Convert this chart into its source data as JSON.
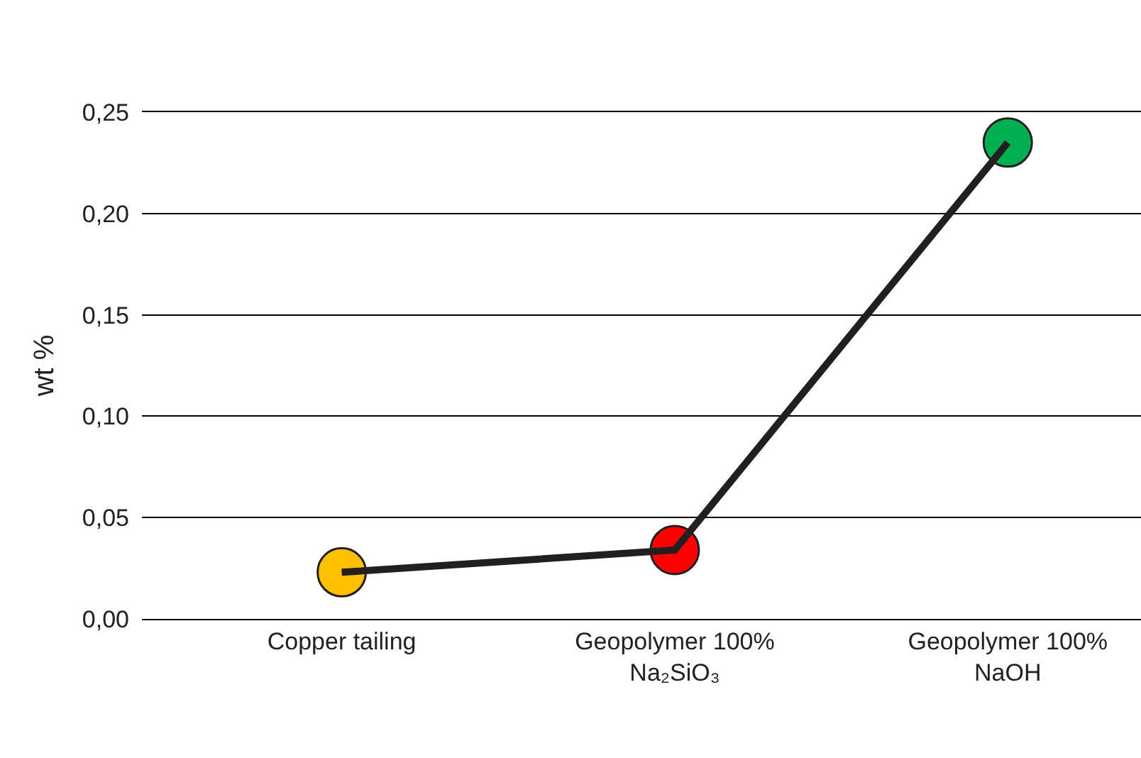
{
  "chart_data": {
    "type": "line",
    "ylabel": "wt %",
    "categories": [
      "Copper tailing",
      "Geopolymer 100%\nNa₂SiO₃",
      "Geopolymer 100%\nNaOH"
    ],
    "series": [
      {
        "color": "#231f20",
        "colors": [
          "#ffc000",
          "#ff0000",
          "#00b050"
        ],
        "values": [
          0.023,
          0.034,
          0.235
        ]
      }
    ],
    "ylim": [
      0,
      0.25
    ],
    "yticks": [
      {
        "value": 0,
        "label": "0,00"
      },
      {
        "value": 0.05,
        "label": "0,05"
      },
      {
        "value": 0.1,
        "label": "0,10"
      },
      {
        "value": 0.15,
        "label": "0,15"
      },
      {
        "value": 0.2,
        "label": "0,20"
      },
      {
        "value": 0.25,
        "label": "0,25"
      }
    ],
    "grid": "y",
    "marker": "circle",
    "line_style": "solid"
  }
}
